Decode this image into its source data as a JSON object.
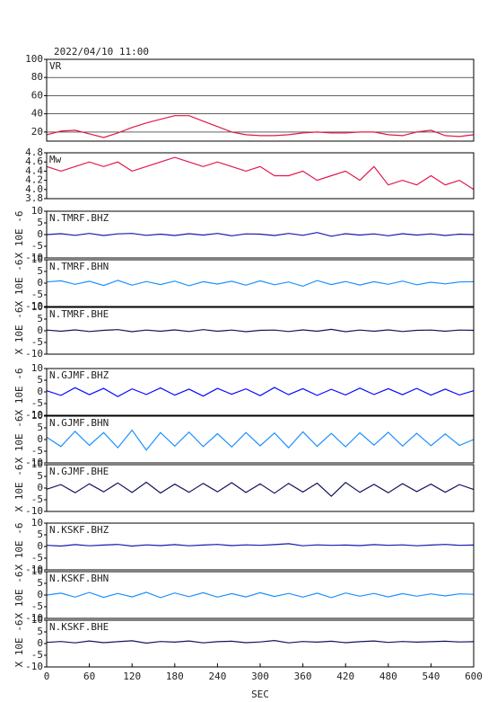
{
  "title": "2022/04/10 11:00",
  "x_axis": {
    "label": "SEC",
    "xlim": [
      0,
      600
    ],
    "xticks": [
      0,
      60,
      120,
      180,
      240,
      300,
      360,
      420,
      480,
      540,
      600
    ],
    "x": [
      0,
      20,
      40,
      60,
      80,
      100,
      120,
      140,
      160,
      180,
      200,
      220,
      240,
      260,
      280,
      300,
      320,
      340,
      360,
      380,
      400,
      420,
      440,
      460,
      480,
      500,
      520,
      540,
      560,
      580,
      600
    ]
  },
  "chart_data": [
    {
      "type": "line",
      "label": "VR",
      "ylim": [
        10,
        100
      ],
      "yticks": [
        20,
        40,
        60,
        80,
        100
      ],
      "grid": true,
      "color": "#e0184a",
      "values": [
        17,
        21,
        22,
        18,
        14,
        19,
        25,
        30,
        34,
        38,
        38,
        32,
        26,
        20,
        17,
        16,
        16,
        17,
        19,
        20,
        19,
        19,
        20,
        20,
        17,
        16,
        20,
        22,
        16,
        15,
        17
      ]
    },
    {
      "type": "line",
      "label": "Mw",
      "ylim": [
        3.8,
        4.8
      ],
      "yticks": [
        3.8,
        {
          "value": 4,
          "label": "4.0"
        },
        4.2,
        4.4,
        4.6,
        4.8
      ],
      "grid": false,
      "color": "#e0184a",
      "values": [
        4.5,
        4.4,
        4.5,
        4.6,
        4.5,
        4.6,
        4.4,
        4.5,
        4.6,
        4.7,
        4.6,
        4.5,
        4.6,
        4.5,
        4.4,
        4.5,
        4.3,
        4.3,
        4.4,
        4.2,
        4.3,
        4.4,
        4.2,
        4.5,
        4.1,
        4.2,
        4.1,
        4.3,
        4.1,
        4.2,
        4.0
      ]
    },
    {
      "type": "line",
      "label": "N.TMRF.BHZ",
      "ylabel": "X 10E -6",
      "ylim": [
        -10,
        10
      ],
      "yticks": [
        -10,
        -5,
        0,
        5,
        10
      ],
      "grid": false,
      "color": "#1818b0",
      "values": [
        0,
        0.4,
        -0.3,
        0.5,
        -0.4,
        0.3,
        0.5,
        -0.3,
        0.2,
        -0.4,
        0.4,
        -0.2,
        0.5,
        -0.5,
        0.3,
        0.2,
        -0.4,
        0.5,
        -0.3,
        0.9,
        -0.7,
        0.4,
        -0.2,
        0.3,
        -0.5,
        0.4,
        -0.2,
        0.3,
        -0.4,
        0.2,
        0
      ]
    },
    {
      "type": "line",
      "label": "N.TMRF.BHN",
      "ylabel": "X 10E -6",
      "ylim": [
        -10,
        10
      ],
      "yticks": [
        -10,
        -5,
        0,
        5,
        10
      ],
      "grid": false,
      "color": "#1e90ff",
      "values": [
        0.5,
        1,
        -0.5,
        0.8,
        -1,
        1.2,
        -0.9,
        0.7,
        -0.6,
        0.9,
        -1.1,
        0.6,
        -0.4,
        0.8,
        -0.9,
        1,
        -0.7,
        0.5,
        -1.3,
        1.1,
        -0.6,
        0.7,
        -0.8,
        0.6,
        -0.5,
        0.9,
        -0.7,
        0.4,
        -0.3,
        0.5,
        0.6
      ]
    },
    {
      "type": "line",
      "label": "N.TMRF.BHE",
      "ylabel": "X 10E -6",
      "ylim": [
        -10,
        10
      ],
      "yticks": [
        -10,
        -5,
        0,
        5,
        10
      ],
      "grid": false,
      "color": "#14145a",
      "values": [
        0.3,
        -0.2,
        0.4,
        -0.3,
        0.2,
        0.5,
        -0.4,
        0.3,
        -0.2,
        0.4,
        -0.3,
        0.5,
        -0.2,
        0.3,
        -0.4,
        0.2,
        0.3,
        -0.3,
        0.4,
        -0.2,
        0.6,
        -0.4,
        0.3,
        -0.2,
        0.4,
        -0.3,
        0.2,
        0.3,
        -0.2,
        0.3,
        0.2
      ]
    },
    {
      "type": "line",
      "label": "N.GJMF.BHZ",
      "ylabel": "X 10E -6",
      "ylim": [
        -10,
        10
      ],
      "yticks": [
        -10,
        -5,
        0,
        5,
        10
      ],
      "grid": false,
      "color": "#0a0aff",
      "values": [
        0.5,
        -1.5,
        1.8,
        -1.2,
        1.5,
        -2,
        1.3,
        -1.1,
        1.7,
        -1.4,
        1.2,
        -1.8,
        1.5,
        -1,
        1.3,
        -1.6,
        1.9,
        -1.2,
        1.4,
        -1.5,
        1.1,
        -1.3,
        1.6,
        -1.1,
        1.4,
        -1.2,
        1.5,
        -1.4,
        1.2,
        -1.3,
        0.5
      ]
    },
    {
      "type": "line",
      "label": "N.GJMF.BHN",
      "ylabel": "X 10E -6",
      "ylim": [
        -10,
        10
      ],
      "yticks": [
        -10,
        -5,
        0,
        5,
        10
      ],
      "grid": false,
      "color": "#1e90ff",
      "values": [
        1,
        -3,
        3.5,
        -2.5,
        3,
        -3.5,
        4,
        -4.5,
        3,
        -2.8,
        3.2,
        -3,
        2.5,
        -3.2,
        3,
        -2.7,
        2.8,
        -3.5,
        3.3,
        -2.9,
        2.6,
        -3.1,
        2.9,
        -2.4,
        3.1,
        -2.8,
        2.7,
        -2.6,
        2.4,
        -2.5,
        0
      ]
    },
    {
      "type": "line",
      "label": "N.GJMF.BHE",
      "ylabel": "X 10E -6",
      "ylim": [
        -10,
        10
      ],
      "yticks": [
        -10,
        -5,
        0,
        5,
        10
      ],
      "grid": false,
      "color": "#14145a",
      "values": [
        -0.5,
        1.5,
        -2,
        1.8,
        -1.6,
        2.2,
        -1.9,
        2.5,
        -2.1,
        1.7,
        -1.8,
        2,
        -1.6,
        2.3,
        -1.9,
        1.8,
        -2.2,
        2,
        -1.7,
        2.1,
        -3.5,
        2.4,
        -1.8,
        1.6,
        -2,
        1.9,
        -1.5,
        1.7,
        -1.8,
        1.5,
        -0.6
      ]
    },
    {
      "type": "line",
      "label": "N.KSKF.BHZ",
      "ylabel": "X 10E -6",
      "ylim": [
        -10,
        10
      ],
      "yticks": [
        -10,
        -5,
        0,
        5,
        10
      ],
      "grid": false,
      "color": "#1818b0",
      "values": [
        0.5,
        0.2,
        0.8,
        0.3,
        0.6,
        0.9,
        0.2,
        0.7,
        0.4,
        0.8,
        0.3,
        0.6,
        0.9,
        0.4,
        0.7,
        0.5,
        0.8,
        1.2,
        0.3,
        0.7,
        0.5,
        0.6,
        0.4,
        0.8,
        0.5,
        0.7,
        0.3,
        0.6,
        0.9,
        0.5,
        0.6
      ]
    },
    {
      "type": "line",
      "label": "N.KSKF.BHN",
      "ylabel": "X 10E -6",
      "ylim": [
        -10,
        10
      ],
      "yticks": [
        -10,
        -5,
        0,
        5,
        10
      ],
      "grid": false,
      "color": "#1e90ff",
      "values": [
        0,
        0.8,
        -0.9,
        1.1,
        -1,
        0.7,
        -0.8,
        1.2,
        -1.1,
        0.9,
        -0.7,
        1,
        -0.9,
        0.6,
        -0.8,
        1,
        -0.6,
        0.7,
        -0.9,
        0.8,
        -1.1,
        0.9,
        -0.5,
        0.7,
        -0.8,
        0.6,
        -0.5,
        0.5,
        -0.4,
        0.5,
        0.3
      ]
    },
    {
      "type": "line",
      "label": "N.KSKF.BHE",
      "ylabel": "X 10E -6",
      "ylim": [
        -10,
        10
      ],
      "yticks": [
        -10,
        -5,
        0,
        5,
        10
      ],
      "grid": false,
      "color": "#14145a",
      "values": [
        0.5,
        0.9,
        0.3,
        1.1,
        0.4,
        0.8,
        1.2,
        0.2,
        0.9,
        0.6,
        1.1,
        0.3,
        0.8,
        1,
        0.4,
        0.7,
        1.3,
        0.3,
        0.9,
        0.6,
        1,
        0.4,
        0.8,
        1.1,
        0.5,
        0.9,
        0.6,
        0.8,
        1,
        0.7,
        0.8
      ]
    }
  ]
}
